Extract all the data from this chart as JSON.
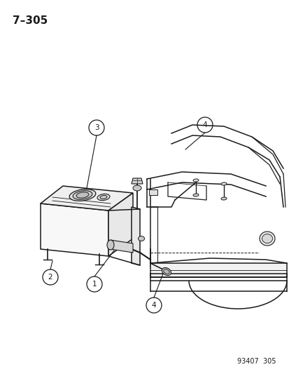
{
  "title": "7–305",
  "ref_number": "93407  305",
  "background_color": "#ffffff",
  "line_color": "#1a1a1a",
  "figsize": [
    4.14,
    5.33
  ],
  "dpi": 100
}
